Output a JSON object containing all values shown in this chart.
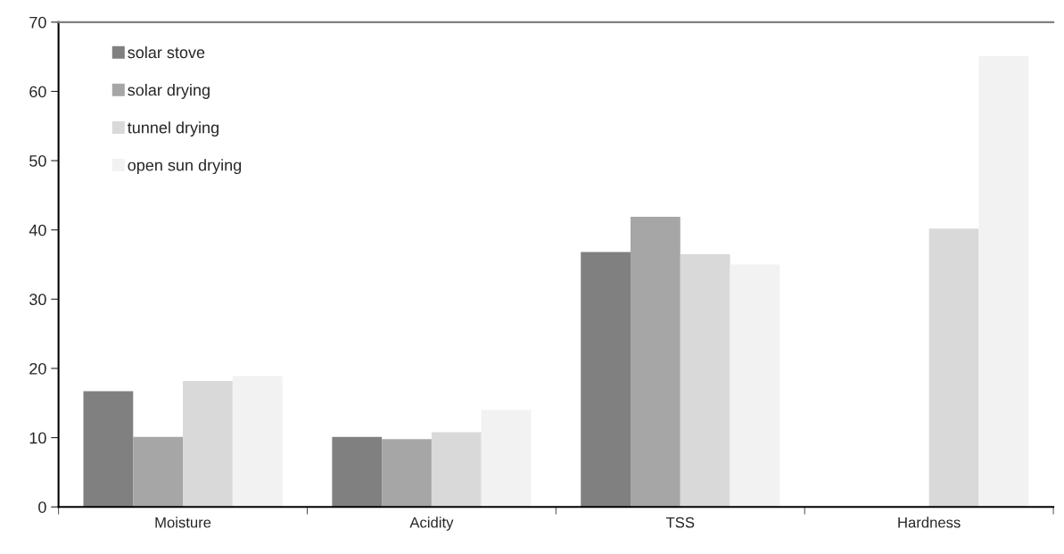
{
  "chart_data": {
    "type": "bar",
    "categories": [
      "Moisture",
      "Acidity",
      "TSS",
      "Hardness"
    ],
    "series": [
      {
        "name": "solar stove",
        "color": "#808080",
        "values": [
          16.7,
          10.1,
          36.8,
          null
        ]
      },
      {
        "name": "solar drying",
        "color": "#a6a6a6",
        "values": [
          10.1,
          9.8,
          41.9,
          null
        ]
      },
      {
        "name": "tunnel drying",
        "color": "#d9d9d9",
        "values": [
          18.2,
          10.8,
          36.5,
          40.2
        ]
      },
      {
        "name": "open sun drying",
        "color": "#f2f2f2",
        "values": [
          18.9,
          14.0,
          35.0,
          65.1
        ]
      }
    ],
    "ylim": [
      0,
      70
    ],
    "yticks": [
      0,
      10,
      20,
      30,
      40,
      50,
      60,
      70
    ],
    "grid": false,
    "legend": "top left"
  }
}
